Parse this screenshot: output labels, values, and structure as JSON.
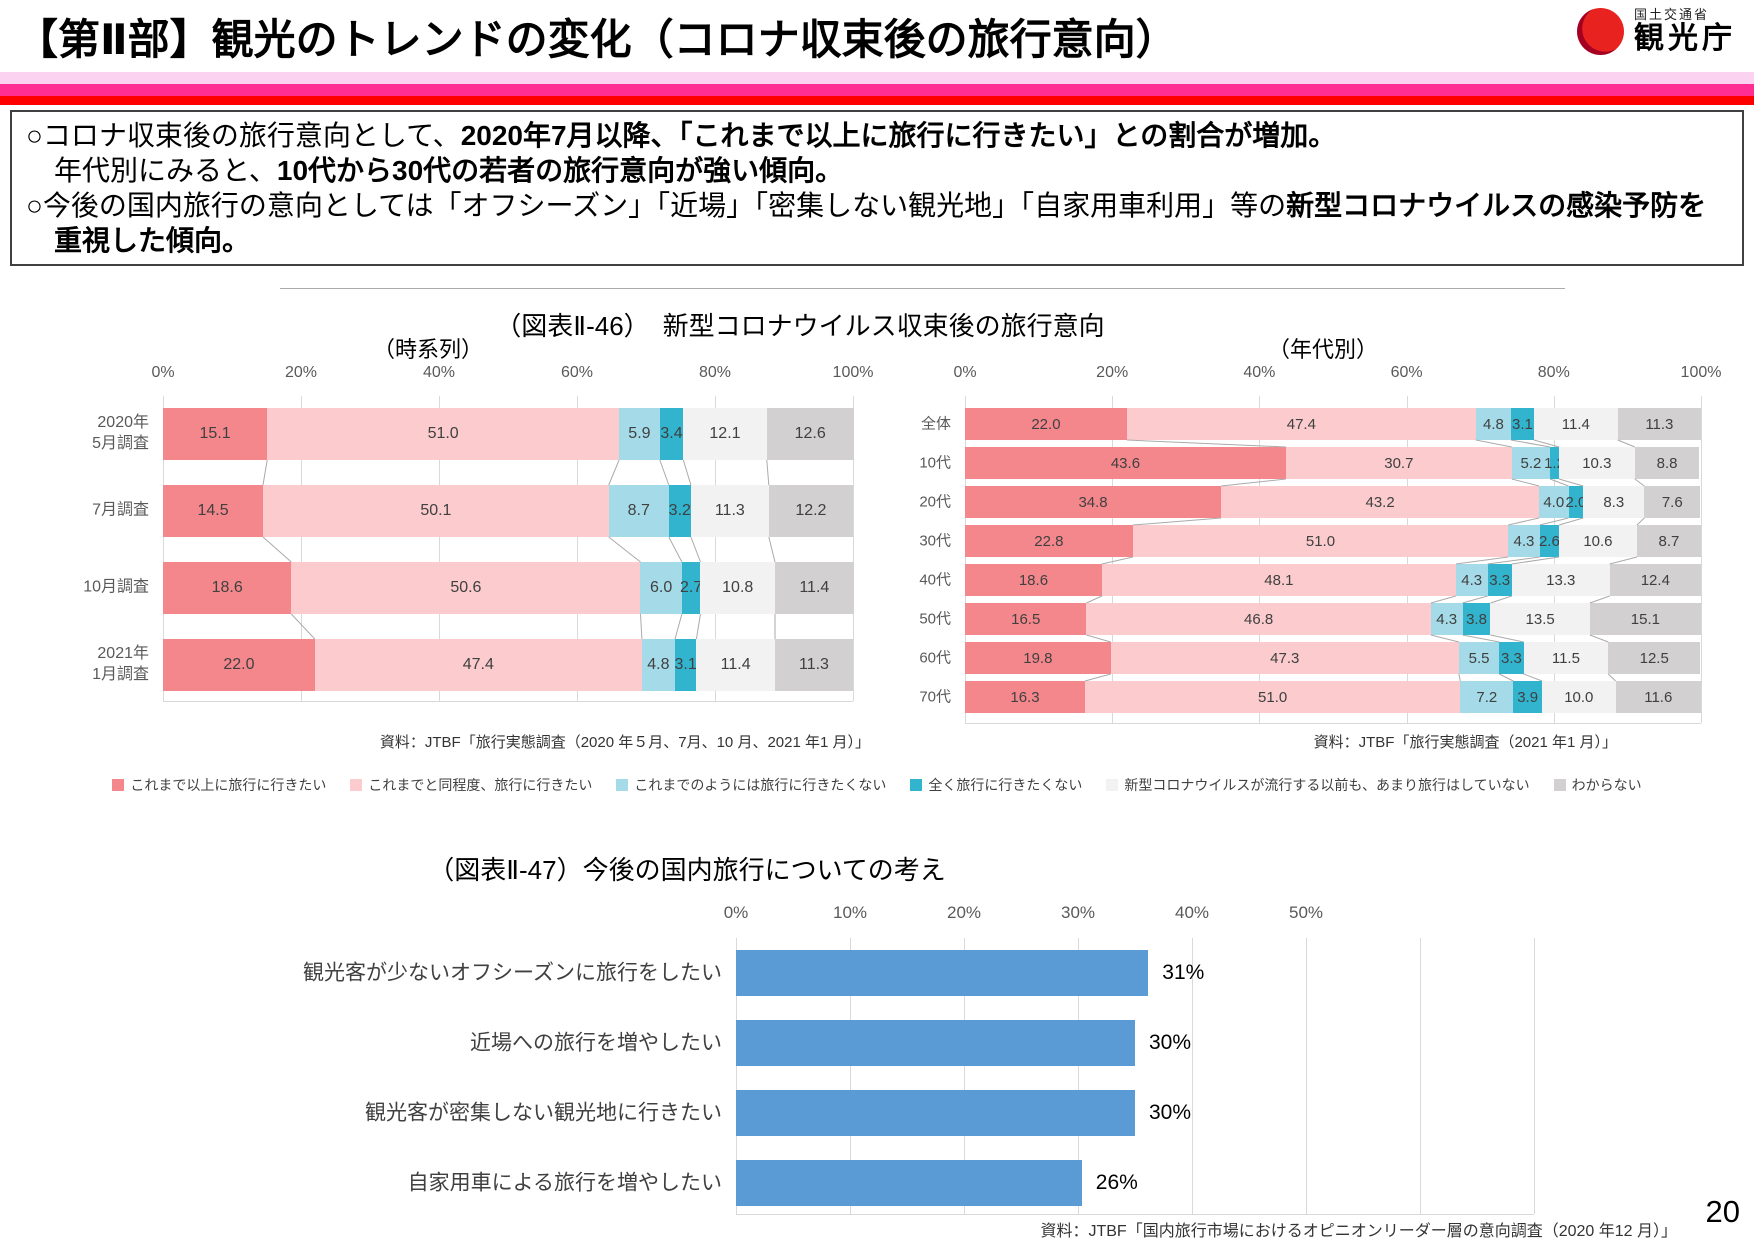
{
  "header": {
    "title": "【第Ⅱ部】観光のトレンドの変化（コロナ収束後の旅行意向）",
    "logo": {
      "ministry": "国土交通省",
      "agency": "観光庁"
    }
  },
  "summary": {
    "p1_normal": "○コロナ収束後の旅行意向として、",
    "p1_bold": "2020年7月以降、「これまで以上に旅行に行きたい」との割合が増加。",
    "p1b_normal": "年代別にみると、",
    "p1b_bold": "10代から30代の若者の旅行意向が強い傾向。",
    "p2_normal": "○今後の国内旅行の意向としては「オフシーズン」「近場」「密集しない観光地」「自家用車利用」等の",
    "p2_bold": "新型コロナウイルスの感染予防を重視した傾向。"
  },
  "figure46": {
    "title": "（図表Ⅱ-46）　新型コロナウイルス収束後の旅行意向"
  },
  "colors": {
    "series": [
      "#F4878C",
      "#FBCBCE",
      "#A5DBE8",
      "#32B4CE",
      "#F2F2F2",
      "#D2D0D0"
    ],
    "bar_blue": "#5B9BD5",
    "band_pink_light": "#FBD3F0",
    "band_magenta": "#FF2E92",
    "band_red": "#FF0000",
    "logo_red": "#D7000F"
  },
  "chart_data": [
    {
      "id": "timeseries",
      "type": "bar",
      "stacked": true,
      "orientation": "horizontal",
      "subtitle": "（時系列）",
      "categories": [
        [
          "2020年",
          "5月調査"
        ],
        [
          "7月調査"
        ],
        [
          "10月調査"
        ],
        [
          "2021年",
          "1月調査"
        ]
      ],
      "series": [
        {
          "name": "これまで以上に旅行に行きたい",
          "values": [
            15.1,
            14.5,
            18.6,
            22.0
          ]
        },
        {
          "name": "これまでと同程度、旅行に行きたい",
          "values": [
            51.0,
            50.1,
            50.6,
            47.4
          ]
        },
        {
          "name": "これまでのようには旅行に行きたくない",
          "values": [
            5.9,
            8.7,
            6.0,
            4.8
          ]
        },
        {
          "name": "全く旅行に行きたくない",
          "values": [
            3.4,
            3.2,
            2.7,
            3.1
          ]
        },
        {
          "name": "新型コロナウイルスが流行する以前も、あまり旅行はしていない",
          "values": [
            12.1,
            11.3,
            10.8,
            11.4
          ]
        },
        {
          "name": "わからない",
          "values": [
            12.6,
            12.2,
            11.4,
            11.3
          ]
        }
      ],
      "xlim": [
        0,
        100
      ],
      "x_ticks": [
        "0%",
        "20%",
        "40%",
        "60%",
        "80%",
        "100%"
      ],
      "grid": true,
      "legend_position": "bottom",
      "source": "資料：JTBF「旅行実態調査（2020 年５月、7月、10 月、2021 年1 月）」"
    },
    {
      "id": "by-age",
      "type": "bar",
      "stacked": true,
      "orientation": "horizontal",
      "subtitle": "（年代別）",
      "categories": [
        [
          "全体"
        ],
        [
          "10代"
        ],
        [
          "20代"
        ],
        [
          "30代"
        ],
        [
          "40代"
        ],
        [
          "50代"
        ],
        [
          "60代"
        ],
        [
          "70代"
        ]
      ],
      "series": [
        {
          "name": "これまで以上に旅行に行きたい",
          "values": [
            22.0,
            43.6,
            34.8,
            22.8,
            18.6,
            16.5,
            19.8,
            16.3
          ]
        },
        {
          "name": "これまでと同程度、旅行に行きたい",
          "values": [
            47.4,
            30.7,
            43.2,
            51.0,
            48.1,
            46.8,
            47.3,
            51.0
          ]
        },
        {
          "name": "これまでのようには旅行に行きたくない",
          "values": [
            4.8,
            5.2,
            4.0,
            4.3,
            4.3,
            4.3,
            5.5,
            7.2
          ]
        },
        {
          "name": "全く旅行に行きたくない",
          "values": [
            3.1,
            1.2,
            2.0,
            2.6,
            3.3,
            3.8,
            3.3,
            3.9
          ]
        },
        {
          "name": "新型コロナウイルスが流行する以前も、あまり旅行はしていない",
          "values": [
            11.4,
            10.3,
            8.3,
            10.6,
            13.3,
            13.5,
            11.5,
            10.0
          ]
        },
        {
          "name": "わからない",
          "values": [
            11.3,
            8.8,
            7.6,
            8.7,
            12.4,
            15.1,
            12.5,
            11.6
          ]
        }
      ],
      "xlim": [
        0,
        100
      ],
      "x_ticks": [
        "0%",
        "20%",
        "40%",
        "60%",
        "80%",
        "100%"
      ],
      "grid": true,
      "legend_position": "bottom",
      "source": "資料：JTBF「旅行実態調査（2021 年1 月）」"
    },
    {
      "id": "domestic-intent",
      "type": "bar",
      "stacked": false,
      "orientation": "horizontal",
      "title": "（図表Ⅱ-47）今後の国内旅行についての考え",
      "categories": [
        "観光客が少ないオフシーズンに旅行をしたい",
        "近場への旅行を増やしたい",
        "観光客が密集しない観光地に行きたい",
        "自家用車による旅行を増やしたい"
      ],
      "values": [
        31,
        30,
        30,
        26
      ],
      "xlim": [
        0,
        60
      ],
      "x_ticks": [
        "0%",
        "10%",
        "20%",
        "30%",
        "40%",
        "50%"
      ],
      "grid": true,
      "source": "資料：JTBF「国内旅行市場におけるオピニオンリーダー層の意向調査（2020 年12 月）」"
    }
  ],
  "page_number": "20"
}
